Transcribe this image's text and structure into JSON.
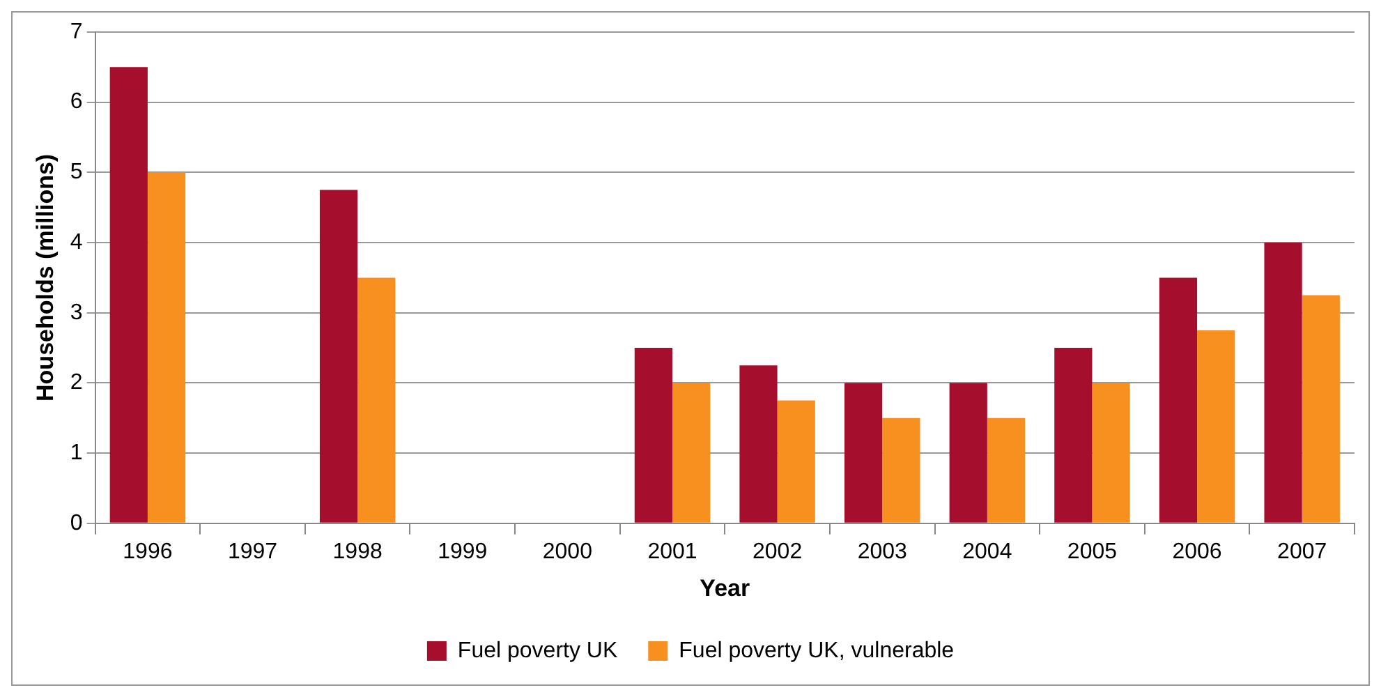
{
  "chart_data": {
    "type": "bar",
    "xlabel": "Year",
    "ylabel": "Households (millions)",
    "categories": [
      "1996",
      "1997",
      "1998",
      "1999",
      "2000",
      "2001",
      "2002",
      "2003",
      "2004",
      "2005",
      "2006",
      "2007"
    ],
    "series": [
      {
        "name": "Fuel poverty UK",
        "color": "#a50f2d",
        "values": [
          6.5,
          null,
          4.75,
          null,
          null,
          2.5,
          2.25,
          2.0,
          2.0,
          2.5,
          3.5,
          4.0
        ]
      },
      {
        "name": "Fuel poverty UK, vulnerable",
        "color": "#f7901e",
        "values": [
          5.0,
          null,
          3.5,
          null,
          null,
          2.0,
          1.75,
          1.5,
          1.5,
          2.0,
          2.75,
          3.25
        ]
      }
    ],
    "ylim": [
      0,
      7
    ],
    "yticks": [
      0,
      1,
      2,
      3,
      4,
      5,
      6,
      7
    ],
    "grid": "y",
    "legend": "bottom"
  }
}
